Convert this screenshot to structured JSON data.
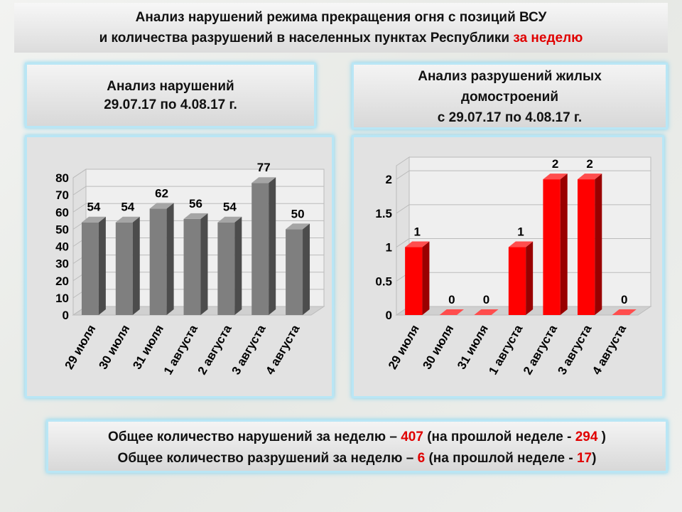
{
  "header": {
    "line1": "Анализ нарушений режима прекращения огня с позиций ВСУ",
    "line2": "и количества разрушений в населенных пунктах Республики ",
    "line2_highlight": "за неделю"
  },
  "panels": [
    {
      "lines": [
        "Анализ нарушений",
        "29.07.17 по 4.08.17 г."
      ]
    },
    {
      "lines": [
        "Анализ разрушений жилых",
        "домостроений",
        "с 29.07.17 по 4.08.17 г."
      ]
    }
  ],
  "chart_data": [
    {
      "type": "bar3d",
      "categories": [
        "29 июля",
        "30 июля",
        "31 июля",
        "1 августа",
        "2 августа",
        "3 августа",
        "4 августа"
      ],
      "values": [
        54,
        54,
        62,
        56,
        54,
        77,
        50
      ],
      "color": "#7f7f7f",
      "ylim": [
        0,
        80
      ],
      "yticks": [
        0,
        10,
        20,
        30,
        40,
        50,
        60,
        70,
        80
      ],
      "grid": true
    },
    {
      "type": "bar3d",
      "categories": [
        "29 июля",
        "30 июля",
        "31 июля",
        "1 августа",
        "2 августа",
        "3 августа",
        "4 августа"
      ],
      "values": [
        1,
        0,
        0,
        1,
        2,
        2,
        0
      ],
      "color": "#ff0000",
      "ylim": [
        0,
        2.2
      ],
      "yticks": [
        0,
        0.5,
        1,
        1.5,
        2
      ],
      "grid": true
    }
  ],
  "summary": [
    {
      "before": "Общее количество нарушений за неделю – ",
      "value": 407,
      "middle": " (на прошлой неделе - ",
      "previous": 294,
      "after": " )"
    },
    {
      "before": "Общее количество разрушений за неделю – ",
      "value": 6,
      "middle": " (на прошлой неделе - ",
      "previous": 17,
      "after": ")"
    }
  ]
}
